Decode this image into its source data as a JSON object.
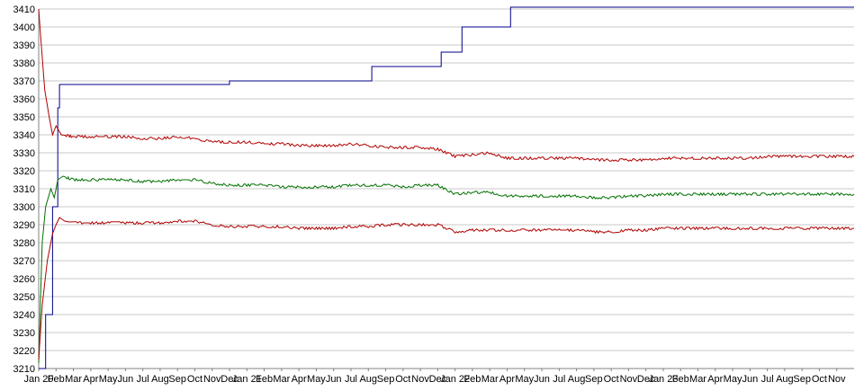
{
  "chart_data": {
    "type": "line",
    "title": "",
    "xlabel": "",
    "ylabel": "",
    "ylim": [
      3210,
      3410
    ],
    "ytick_step": 10,
    "grid": true,
    "legend": "none",
    "x_tick_labels": [
      "Jan 20",
      "Feb",
      "Mar",
      "Apr",
      "May",
      "Jun",
      "Jul",
      "Aug",
      "Sep",
      "Oct",
      "Nov",
      "Dec",
      "Jan 21",
      "Feb",
      "Mar",
      "Apr",
      "May",
      "Jun",
      "Jul",
      "Aug",
      "Sep",
      "Oct",
      "Nov",
      "Dec",
      "Jan 22",
      "Feb",
      "Mar",
      "Apr",
      "May",
      "Jun",
      "Jul",
      "Aug",
      "Sep",
      "Oct",
      "Nov",
      "Dec",
      "Jan 23",
      "Feb",
      "Mar",
      "Apr",
      "May",
      "Jun",
      "Jul",
      "Aug",
      "Sep",
      "Oct",
      "Nov"
    ],
    "x_month_range": [
      0,
      47
    ],
    "series": [
      {
        "color": "#00008b",
        "step": true,
        "x": [
          0,
          0.4,
          0.8,
          1.1,
          1.2,
          5,
          10,
          11,
          15,
          18.6,
          19.2,
          22.6,
          23.2,
          23.7,
          24.4,
          26.6,
          27.2,
          47
        ],
        "values": [
          3210,
          3240,
          3300,
          3355,
          3368,
          3368,
          3368,
          3370,
          3370,
          3370,
          3378,
          3378,
          3386,
          3386,
          3400,
          3400,
          3411,
          3411
        ]
      },
      {
        "color": "#b00000",
        "step": false,
        "x": [
          0,
          0.15,
          0.35,
          0.6,
          0.8,
          1.0,
          1.3,
          2,
          3,
          4,
          5,
          6,
          7,
          8,
          9,
          10,
          11,
          12,
          13,
          14,
          15,
          16,
          17,
          18,
          19,
          20,
          21,
          22,
          23,
          24,
          25,
          26,
          27,
          28,
          29,
          30,
          31,
          32,
          33,
          34,
          35,
          36,
          37,
          38,
          39,
          40,
          41,
          42,
          43,
          44,
          45,
          46,
          47
        ],
        "values": [
          3410,
          3390,
          3365,
          3350,
          3340,
          3345,
          3340,
          3339,
          3339,
          3339,
          3339,
          3338,
          3338,
          3339,
          3338,
          3336,
          3336,
          3336,
          3335,
          3335,
          3334,
          3334,
          3334,
          3335,
          3334,
          3333,
          3333,
          3333,
          3332,
          3328,
          3329,
          3330,
          3327,
          3327,
          3327,
          3327,
          3327,
          3326,
          3326,
          3326,
          3326,
          3327,
          3327,
          3327,
          3327,
          3327,
          3327,
          3328,
          3328,
          3328,
          3328,
          3328,
          3328
        ]
      },
      {
        "color": "#007000",
        "step": false,
        "x": [
          0,
          0.2,
          0.4,
          0.7,
          0.9,
          1.1,
          1.4,
          2,
          3,
          4,
          5,
          6,
          7,
          8,
          9,
          10,
          11,
          12,
          13,
          14,
          15,
          16,
          17,
          18,
          19,
          20,
          21,
          22,
          23,
          24,
          25,
          26,
          27,
          28,
          29,
          30,
          31,
          32,
          33,
          34,
          35,
          36,
          37,
          38,
          39,
          40,
          41,
          42,
          43,
          44,
          45,
          46,
          47
        ],
        "values": [
          3213,
          3280,
          3300,
          3310,
          3305,
          3315,
          3317,
          3315,
          3315,
          3315,
          3315,
          3314,
          3314,
          3315,
          3315,
          3313,
          3312,
          3312,
          3312,
          3311,
          3311,
          3311,
          3311,
          3312,
          3312,
          3312,
          3311,
          3312,
          3312,
          3307,
          3308,
          3308,
          3306,
          3306,
          3306,
          3306,
          3306,
          3305,
          3305,
          3306,
          3306,
          3307,
          3307,
          3307,
          3307,
          3307,
          3307,
          3307,
          3307,
          3307,
          3307,
          3307,
          3307
        ]
      },
      {
        "color": "#b00000",
        "step": false,
        "x": [
          0,
          0.2,
          0.5,
          0.8,
          1.0,
          1.2,
          1.5,
          2,
          3,
          4,
          5,
          6,
          7,
          8,
          9,
          10,
          11,
          12,
          13,
          14,
          15,
          16,
          17,
          18,
          19,
          20,
          21,
          22,
          23,
          24,
          25,
          26,
          27,
          28,
          29,
          30,
          31,
          32,
          33,
          34,
          35,
          36,
          37,
          38,
          39,
          40,
          41,
          42,
          43,
          44,
          45,
          46,
          47
        ],
        "values": [
          3215,
          3245,
          3270,
          3285,
          3290,
          3294,
          3292,
          3291,
          3291,
          3291,
          3291,
          3291,
          3291,
          3292,
          3292,
          3290,
          3289,
          3289,
          3289,
          3289,
          3288,
          3288,
          3288,
          3289,
          3289,
          3290,
          3290,
          3290,
          3290,
          3286,
          3287,
          3287,
          3287,
          3287,
          3287,
          3287,
          3287,
          3286,
          3286,
          3287,
          3287,
          3288,
          3288,
          3288,
          3288,
          3288,
          3288,
          3288,
          3288,
          3288,
          3288,
          3288,
          3288
        ]
      }
    ]
  }
}
